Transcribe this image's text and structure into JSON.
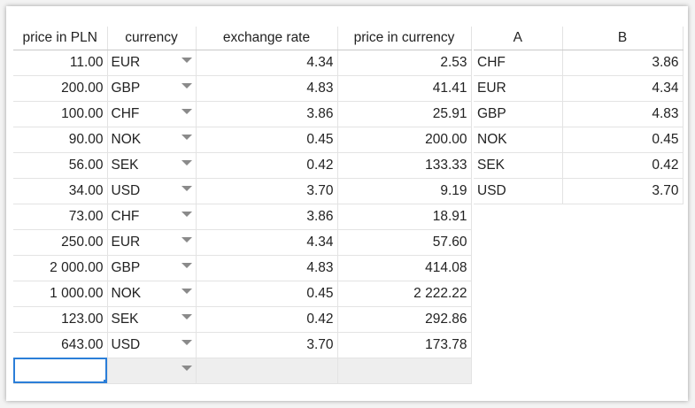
{
  "main_table": {
    "headers": {
      "price_pln": "price in PLN",
      "currency": "currency",
      "exchange_rate": "exchange rate",
      "price_currency": "price in currency"
    },
    "rows": [
      {
        "price_pln": "11.00",
        "currency": "EUR",
        "rate": "4.34",
        "price_cur": "2.53"
      },
      {
        "price_pln": "200.00",
        "currency": "GBP",
        "rate": "4.83",
        "price_cur": "41.41"
      },
      {
        "price_pln": "100.00",
        "currency": "CHF",
        "rate": "3.86",
        "price_cur": "25.91"
      },
      {
        "price_pln": "90.00",
        "currency": "NOK",
        "rate": "0.45",
        "price_cur": "200.00"
      },
      {
        "price_pln": "56.00",
        "currency": "SEK",
        "rate": "0.42",
        "price_cur": "133.33"
      },
      {
        "price_pln": "34.00",
        "currency": "USD",
        "rate": "3.70",
        "price_cur": "9.19"
      },
      {
        "price_pln": "73.00",
        "currency": "CHF",
        "rate": "3.86",
        "price_cur": "18.91"
      },
      {
        "price_pln": "250.00",
        "currency": "EUR",
        "rate": "4.34",
        "price_cur": "57.60"
      },
      {
        "price_pln": "2 000.00",
        "currency": "GBP",
        "rate": "4.83",
        "price_cur": "414.08"
      },
      {
        "price_pln": "1 000.00",
        "currency": "NOK",
        "rate": "0.45",
        "price_cur": "2 222.22"
      },
      {
        "price_pln": "123.00",
        "currency": "SEK",
        "rate": "0.42",
        "price_cur": "292.86"
      },
      {
        "price_pln": "643.00",
        "currency": "USD",
        "rate": "3.70",
        "price_cur": "173.78"
      }
    ]
  },
  "lookup_table": {
    "headers": {
      "a": "A",
      "b": "B"
    },
    "rows": [
      {
        "a": "CHF",
        "b": "3.86"
      },
      {
        "a": "EUR",
        "b": "4.34"
      },
      {
        "a": "GBP",
        "b": "4.83"
      },
      {
        "a": "NOK",
        "b": "0.45"
      },
      {
        "a": "SEK",
        "b": "0.42"
      },
      {
        "a": "USD",
        "b": "3.70"
      }
    ]
  },
  "colors": {
    "selection": "#2b7ed8",
    "empty_row": "#eeeeee",
    "grid": "#e3e3e3"
  }
}
